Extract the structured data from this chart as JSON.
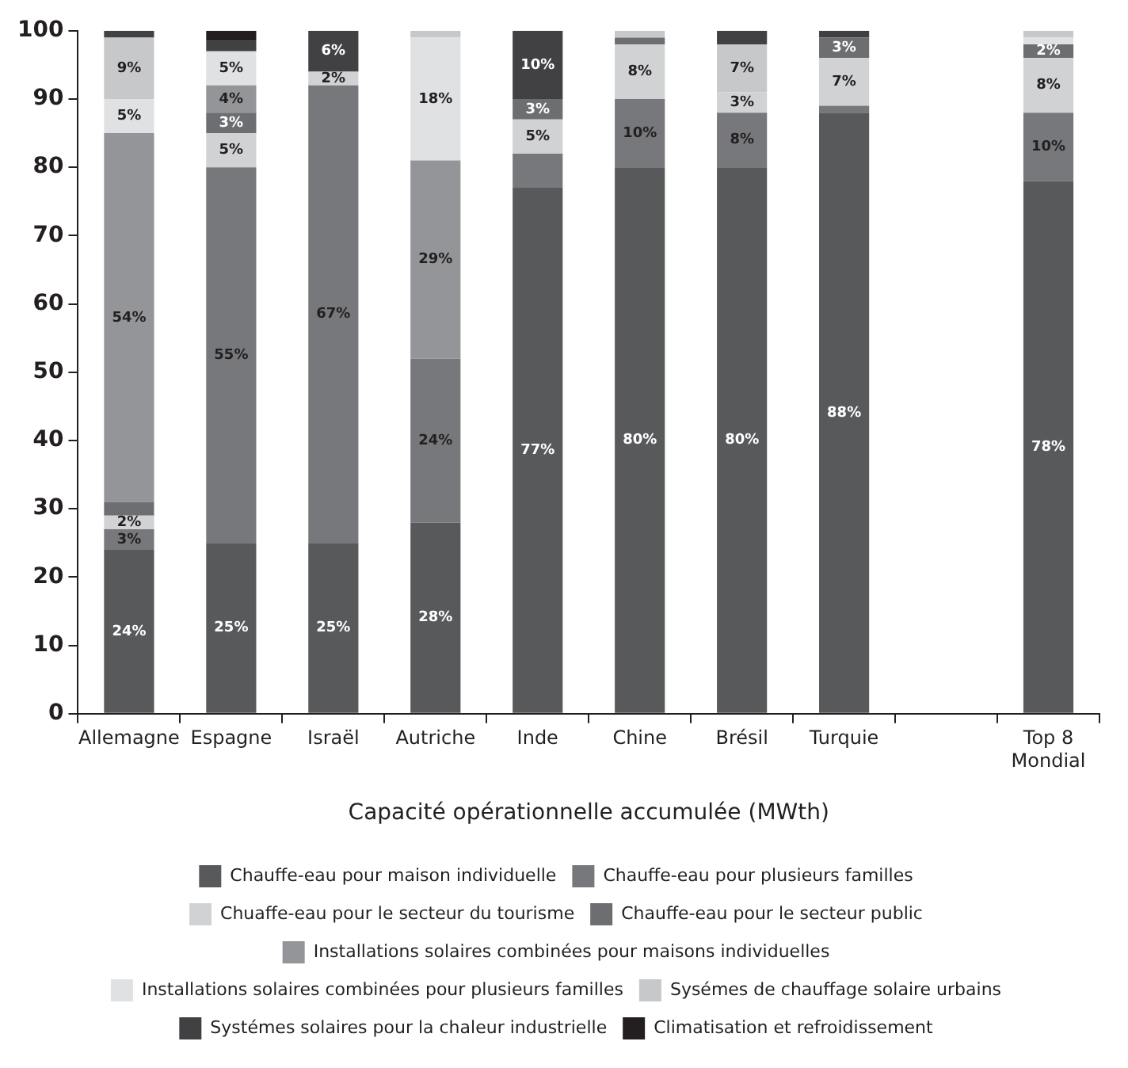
{
  "chart_data": {
    "type": "bar",
    "stacked": true,
    "xlabel": "Capacité opérationnelle accumulée (MWth)",
    "categories": [
      "Allemagne",
      "Espagne",
      "Israël",
      "Autriche",
      "Inde",
      "Chine",
      "Brésil",
      "Turquie",
      null,
      "Top 8 Mondial"
    ],
    "ylim": [
      0,
      100
    ],
    "yticks": [
      0,
      10,
      20,
      30,
      40,
      50,
      60,
      70,
      80,
      90,
      100
    ],
    "grid": false,
    "legend": "bottom",
    "series": [
      {
        "name": "Chauffe-eau pour maison individuelle",
        "color": "#58595b",
        "values": [
          24,
          25,
          25,
          28,
          77,
          80,
          80,
          88,
          null,
          78
        ],
        "value_labels": [
          "24%",
          "25%",
          "25%",
          "28%",
          "77%",
          "80%",
          "80%",
          "88%",
          null,
          "78%"
        ]
      },
      {
        "name": "Chauffe-eau pour plusieurs familles",
        "color": "#77787b",
        "values": [
          3,
          55,
          67,
          24,
          5,
          10,
          8,
          1,
          null,
          10
        ],
        "value_labels": [
          "3%",
          "55%",
          "67%",
          "24%",
          null,
          "10%",
          "8%",
          null,
          null,
          "10%"
        ]
      },
      {
        "name": "Chuaffe-eau pour le secteur du tourisme",
        "color": "#d1d2d4",
        "values": [
          2,
          5,
          2,
          0,
          5,
          8,
          3,
          7,
          null,
          8
        ],
        "value_labels": [
          "2%",
          "5%",
          "2%",
          null,
          "5%",
          "8%",
          "3%",
          "7%",
          null,
          "8%"
        ]
      },
      {
        "name": "Chauffe-eau pour le secteur public",
        "color": "#6d6e71",
        "values": [
          2,
          3,
          0,
          0,
          3,
          1,
          0,
          3,
          null,
          2
        ],
        "value_labels": [
          null,
          "3%",
          null,
          null,
          "3%",
          null,
          null,
          "3%",
          null,
          "2%"
        ]
      },
      {
        "name": "Installations solaires combinées pour maisons individuelles",
        "color": "#939598",
        "values": [
          54,
          4,
          0,
          29,
          0,
          0,
          0,
          0,
          null,
          0
        ],
        "value_labels": [
          "54%",
          "4%",
          null,
          "29%",
          null,
          null,
          null,
          null,
          null,
          null
        ]
      },
      {
        "name": "Installations solaires combinées pour plusieurs familles",
        "color": "#e0e1e2",
        "values": [
          5,
          5,
          0,
          18,
          0,
          0,
          0,
          0,
          null,
          1
        ],
        "value_labels": [
          "5%",
          "5%",
          null,
          "18%",
          null,
          null,
          null,
          null,
          null,
          null
        ]
      },
      {
        "name": "Sysémes de chauffage solaire urbains",
        "color": "#c7c8ca",
        "values": [
          9,
          0,
          0,
          1,
          0,
          1,
          7,
          0,
          null,
          1
        ],
        "value_labels": [
          "9%",
          null,
          null,
          null,
          null,
          null,
          "7%",
          null,
          null,
          null
        ]
      },
      {
        "name": "Systémes solaires pour la chaleur industrielle",
        "color": "#414042",
        "values": [
          1,
          1.5,
          6,
          0,
          10,
          0,
          2,
          1,
          null,
          0
        ],
        "value_labels": [
          null,
          null,
          "6%",
          null,
          "10%",
          null,
          null,
          null,
          null,
          null
        ]
      },
      {
        "name": "Climatisation et refroidissement",
        "color": "#231f20",
        "values": [
          0,
          1.5,
          0,
          0,
          0,
          0,
          0,
          0,
          null,
          0
        ],
        "value_labels": [
          null,
          null,
          null,
          null,
          null,
          null,
          null,
          null,
          null,
          null
        ]
      }
    ]
  }
}
